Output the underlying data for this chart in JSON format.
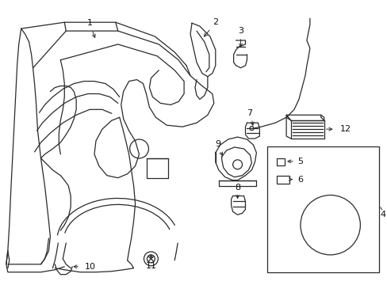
{
  "bg": "#ffffff",
  "lc": "#2a2a2a",
  "lw": 0.9,
  "fs": 8,
  "label_color": "#111111"
}
